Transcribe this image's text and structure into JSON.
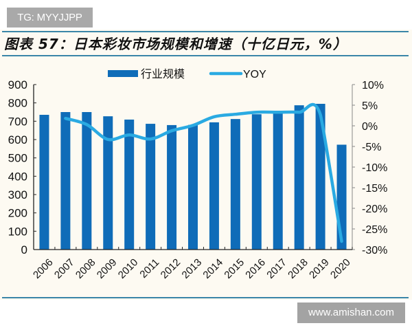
{
  "watermarks": {
    "top": "TG: MYYJJPP",
    "bottom": "www.amishan.com"
  },
  "figure": {
    "title": "图表 57：日本彩妆市场规模和增速（十亿日元，%）"
  },
  "colors": {
    "bar": "#0f6cb8",
    "line": "#2aaae2",
    "rule": "#3a86a8",
    "panel_bg": "#fdfaf2"
  },
  "chart_data": {
    "type": "bar+line",
    "title": "日本彩妆市场规模和增速（十亿日元，%）",
    "categories": [
      "2006",
      "2007",
      "2008",
      "2009",
      "2010",
      "2011",
      "2012",
      "2013",
      "2014",
      "2015",
      "2016",
      "2017",
      "2018",
      "2019",
      "2020"
    ],
    "series": [
      {
        "name": "行业规模",
        "type": "bar",
        "axis": "left",
        "values": [
          735,
          750,
          750,
          727,
          709,
          686,
          679,
          680,
          694,
          712,
          738,
          752,
          787,
          795,
          572
        ]
      },
      {
        "name": "YOY",
        "type": "line",
        "axis": "right",
        "unit": "%",
        "values": [
          null,
          1.8,
          0.3,
          -3.3,
          -2.2,
          -3.2,
          -1.2,
          0.1,
          2.2,
          2.8,
          3.3,
          3.3,
          3.3,
          2.7,
          -28.0
        ]
      }
    ],
    "left_axis": {
      "ylim": [
        0,
        900
      ],
      "ticks": [
        "0",
        "100",
        "200",
        "300",
        "400",
        "500",
        "600",
        "700",
        "800",
        "900"
      ]
    },
    "right_axis": {
      "ylim": [
        -30,
        10
      ],
      "ticks": [
        "-30%",
        "-25%",
        "-20%",
        "-15%",
        "-10%",
        "-5%",
        "0%",
        "5%",
        "10%"
      ]
    },
    "legend": {
      "position": "top",
      "entries": [
        "行业规模",
        "YOY"
      ]
    },
    "xlabel": "",
    "ylabel": "",
    "grid": false
  }
}
